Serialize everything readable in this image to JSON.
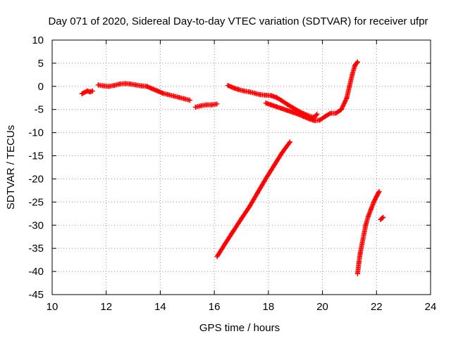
{
  "chart_data": {
    "type": "scatter",
    "title": "Day 071 of 2020, Sidereal Day-to-day VTEC variation (SDTVAR) for receiver ufpr",
    "xlabel": "GPS time / hours",
    "ylabel": "SDTVAR / TECUs",
    "xlim": [
      10,
      24
    ],
    "ylim": [
      -45,
      10
    ],
    "xticks": [
      10,
      12,
      14,
      16,
      18,
      20,
      22,
      24
    ],
    "yticks": [
      10,
      5,
      0,
      -5,
      -10,
      -15,
      -20,
      -25,
      -30,
      -35,
      -40,
      -45
    ],
    "grid": true,
    "marker": "plus",
    "color": "#ff0000",
    "series": [
      {
        "x": [
          11.1,
          11.2,
          11.3,
          11.4,
          11.5
        ],
        "y": [
          -1.6,
          -1.3,
          -1.0,
          -1.2,
          -1.0
        ]
      },
      {
        "x": [
          11.7,
          11.9,
          12.1,
          12.3,
          12.5,
          12.7,
          12.9,
          13.1,
          13.3,
          13.5,
          13.7,
          13.9,
          14.1,
          14.3,
          14.5,
          14.7,
          14.9,
          15.1
        ],
        "y": [
          0.3,
          0.1,
          0.0,
          0.2,
          0.5,
          0.6,
          0.5,
          0.3,
          0.1,
          0.0,
          -0.5,
          -1.0,
          -1.5,
          -1.8,
          -2.1,
          -2.4,
          -2.7,
          -3.0
        ]
      },
      {
        "x": [
          15.3,
          15.5,
          15.7,
          15.9,
          16.1
        ],
        "y": [
          -4.5,
          -4.2,
          -4.0,
          -4.0,
          -3.8
        ]
      },
      {
        "x": [
          16.5,
          16.7,
          16.9,
          17.1,
          17.3,
          17.5,
          17.7,
          17.9,
          18.1,
          18.3,
          18.5,
          18.7,
          18.9,
          19.1,
          19.3,
          19.5,
          19.7,
          19.8
        ],
        "y": [
          0.2,
          -0.3,
          -0.7,
          -1.0,
          -1.2,
          -1.5,
          -1.8,
          -1.9,
          -2.0,
          -2.4,
          -3.1,
          -3.9,
          -4.6,
          -5.3,
          -5.9,
          -6.4,
          -6.7,
          -6.0
        ]
      },
      {
        "x": [
          17.9,
          18.1,
          18.3,
          18.5,
          18.7,
          18.9,
          19.1,
          19.3,
          19.5,
          19.7,
          19.9,
          20.1,
          20.3,
          20.5,
          20.7,
          20.9,
          21.0,
          21.1,
          21.2,
          21.3
        ],
        "y": [
          -3.6,
          -4.0,
          -4.4,
          -4.8,
          -5.2,
          -5.6,
          -6.0,
          -6.5,
          -7.0,
          -7.4,
          -7.3,
          -6.5,
          -5.8,
          -5.8,
          -5.0,
          -2.5,
          0.0,
          2.5,
          4.5,
          5.3
        ]
      },
      {
        "x": [
          16.1,
          16.4,
          16.7,
          17.0,
          17.3,
          17.6,
          17.9,
          18.2,
          18.5,
          18.8
        ],
        "y": [
          -36.8,
          -34.0,
          -31.3,
          -28.6,
          -26.0,
          -23.0,
          -20.0,
          -17.2,
          -14.4,
          -12.0
        ]
      },
      {
        "x": [
          21.3,
          21.35,
          21.4,
          21.5,
          21.6,
          21.7,
          21.8,
          21.9,
          22.0,
          22.1
        ],
        "y": [
          -40.5,
          -38.0,
          -36.0,
          -33.0,
          -30.0,
          -28.0,
          -26.5,
          -25.0,
          -23.8,
          -22.7
        ]
      },
      {
        "x": [
          22.15,
          22.2,
          22.25
        ],
        "y": [
          -28.8,
          -28.5,
          -28.3
        ]
      }
    ]
  }
}
